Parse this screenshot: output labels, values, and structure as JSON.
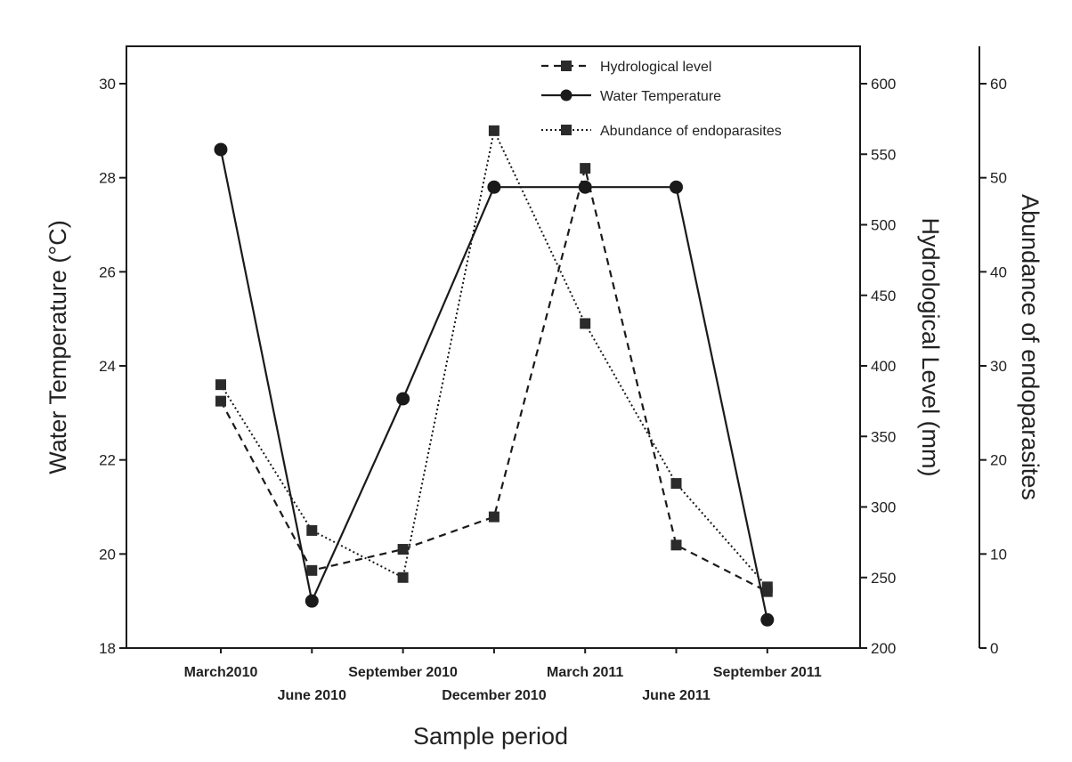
{
  "chart_data": {
    "type": "line",
    "xlabel": "Sample period",
    "categories": [
      "March2010",
      "June 2010",
      "September 2010",
      "December 2010",
      "March 2011",
      "June 2011",
      "September 2011"
    ],
    "axes": {
      "left": {
        "label": "Water Temperature (°C)",
        "min": 18,
        "max": 30,
        "ticks": [
          18,
          20,
          22,
          24,
          26,
          28,
          30
        ]
      },
      "right_inner": {
        "label": "Hydrological Level (mm)",
        "min": 200,
        "max": 600,
        "ticks": [
          200,
          250,
          300,
          350,
          400,
          450,
          500,
          550,
          600
        ]
      },
      "right_outer": {
        "label": "Abundance of endoparasites",
        "min": 0,
        "max": 60,
        "ticks": [
          0,
          10,
          20,
          30,
          40,
          50,
          60
        ]
      }
    },
    "series": [
      {
        "name": "Hydrological level",
        "axis": "right_inner",
        "style": "dashed",
        "marker": "square",
        "values": [
          375,
          255,
          270,
          293,
          540,
          273,
          240
        ]
      },
      {
        "name": "Water Temperature",
        "axis": "left",
        "style": "solid",
        "marker": "circle",
        "values": [
          28.6,
          19.0,
          23.3,
          27.8,
          27.8,
          27.8,
          18.6
        ]
      },
      {
        "name": "Abundance of endoparasites",
        "axis": "right_outer",
        "style": "dotted",
        "marker": "square",
        "values": [
          28,
          12.5,
          7.5,
          55,
          34.5,
          17.5,
          6.5
        ]
      }
    ],
    "legend_position": "top-right",
    "grid": false
  }
}
